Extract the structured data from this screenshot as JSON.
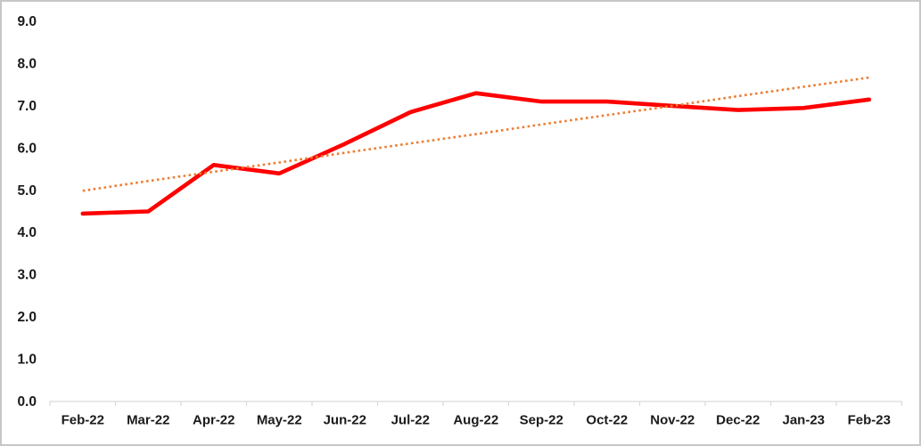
{
  "chart_data": {
    "type": "line",
    "title": "",
    "xlabel": "",
    "ylabel": "",
    "categories": [
      "Feb-22",
      "Mar-22",
      "Apr-22",
      "May-22",
      "Jun-22",
      "Jul-22",
      "Aug-22",
      "Sep-22",
      "Oct-22",
      "Nov-22",
      "Dec-22",
      "Jan-23",
      "Feb-23"
    ],
    "series": [
      {
        "name": "actual-values",
        "type": "solid-line",
        "color": "#ff0000",
        "values": [
          4.45,
          4.5,
          5.6,
          5.4,
          6.1,
          6.85,
          7.3,
          7.1,
          7.1,
          7.0,
          6.9,
          6.95,
          7.15
        ]
      },
      {
        "name": "linear-trendline",
        "type": "dotted-line",
        "color": "#ed7d31",
        "values": [
          4.99,
          5.22,
          5.44,
          5.66,
          5.89,
          6.11,
          6.33,
          6.56,
          6.78,
          7.0,
          7.23,
          7.45,
          7.67
        ]
      }
    ],
    "ylim": [
      0,
      9
    ],
    "y_tick_labels": [
      "0.0",
      "1.0",
      "2.0",
      "3.0",
      "4.0",
      "5.0",
      "6.0",
      "7.0",
      "8.0",
      "9.0"
    ],
    "grid": "off",
    "legend": "none",
    "axis_color": "#d9d9d9",
    "tick_label_color": "#1a1a1a"
  }
}
